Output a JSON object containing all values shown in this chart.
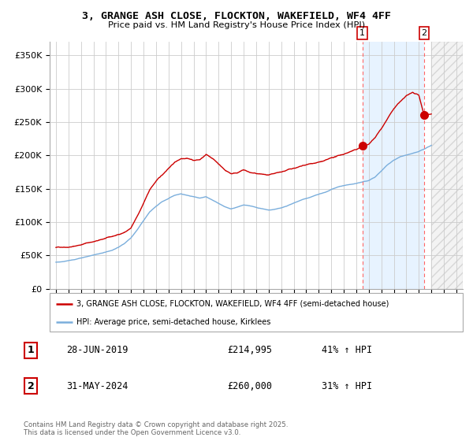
{
  "title_line1": "3, GRANGE ASH CLOSE, FLOCKTON, WAKEFIELD, WF4 4FF",
  "title_line2": "Price paid vs. HM Land Registry's House Price Index (HPI)",
  "xlim": [
    1994.5,
    2027.5
  ],
  "ylim": [
    0,
    370000
  ],
  "yticks": [
    0,
    50000,
    100000,
    150000,
    200000,
    250000,
    300000,
    350000
  ],
  "ytick_labels": [
    "£0",
    "£50K",
    "£100K",
    "£150K",
    "£200K",
    "£250K",
    "£300K",
    "£350K"
  ],
  "red_color": "#cc0000",
  "blue_color": "#7aaedc",
  "marker1_x": 2019.49,
  "marker1_y": 214995,
  "marker2_x": 2024.42,
  "marker2_y": 260000,
  "vline_x1": 2019.49,
  "vline_x2": 2024.42,
  "shaded_start": 2019.49,
  "shaded_end": 2024.42,
  "hatch_start": 2025.0,
  "legend_red_label": "3, GRANGE ASH CLOSE, FLOCKTON, WAKEFIELD, WF4 4FF (semi-detached house)",
  "legend_blue_label": "HPI: Average price, semi-detached house, Kirklees",
  "table_row1": [
    "1",
    "28-JUN-2019",
    "£214,995",
    "41% ↑ HPI"
  ],
  "table_row2": [
    "2",
    "31-MAY-2024",
    "£260,000",
    "31% ↑ HPI"
  ],
  "footer": "Contains HM Land Registry data © Crown copyright and database right 2025.\nThis data is licensed under the Open Government Licence v3.0.",
  "bg_color": "#ffffff",
  "grid_color": "#cccccc",
  "shaded_color": "#ddeeff",
  "red_anchors": [
    [
      1995.0,
      62000
    ],
    [
      1995.5,
      63000
    ],
    [
      1996.0,
      64000
    ],
    [
      1996.5,
      65500
    ],
    [
      1997.0,
      68000
    ],
    [
      1997.5,
      71000
    ],
    [
      1998.0,
      73000
    ],
    [
      1998.5,
      75000
    ],
    [
      1999.0,
      78000
    ],
    [
      1999.5,
      80000
    ],
    [
      2000.0,
      83000
    ],
    [
      2000.5,
      87000
    ],
    [
      2001.0,
      93000
    ],
    [
      2001.5,
      110000
    ],
    [
      2002.0,
      130000
    ],
    [
      2002.5,
      150000
    ],
    [
      2003.0,
      163000
    ],
    [
      2003.5,
      172000
    ],
    [
      2004.0,
      183000
    ],
    [
      2004.5,
      192000
    ],
    [
      2005.0,
      198000
    ],
    [
      2005.5,
      200000
    ],
    [
      2006.0,
      197000
    ],
    [
      2006.5,
      198000
    ],
    [
      2007.0,
      205000
    ],
    [
      2007.5,
      200000
    ],
    [
      2008.0,
      192000
    ],
    [
      2008.5,
      183000
    ],
    [
      2009.0,
      178000
    ],
    [
      2009.5,
      180000
    ],
    [
      2010.0,
      184000
    ],
    [
      2010.5,
      180000
    ],
    [
      2011.0,
      178000
    ],
    [
      2011.5,
      177000
    ],
    [
      2012.0,
      175000
    ],
    [
      2012.5,
      176000
    ],
    [
      2013.0,
      178000
    ],
    [
      2013.5,
      181000
    ],
    [
      2014.0,
      184000
    ],
    [
      2014.5,
      186000
    ],
    [
      2015.0,
      188000
    ],
    [
      2015.5,
      190000
    ],
    [
      2016.0,
      192000
    ],
    [
      2016.5,
      194000
    ],
    [
      2017.0,
      197000
    ],
    [
      2017.5,
      200000
    ],
    [
      2018.0,
      203000
    ],
    [
      2018.5,
      207000
    ],
    [
      2019.0,
      210000
    ],
    [
      2019.49,
      214995
    ],
    [
      2020.0,
      218000
    ],
    [
      2020.5,
      228000
    ],
    [
      2021.0,
      242000
    ],
    [
      2021.5,
      258000
    ],
    [
      2022.0,
      272000
    ],
    [
      2022.5,
      282000
    ],
    [
      2023.0,
      290000
    ],
    [
      2023.5,
      295000
    ],
    [
      2024.0,
      290000
    ],
    [
      2024.42,
      260000
    ],
    [
      2025.0,
      262000
    ]
  ],
  "blue_anchors": [
    [
      1995.0,
      40000
    ],
    [
      1995.5,
      41000
    ],
    [
      1996.0,
      43000
    ],
    [
      1996.5,
      44000
    ],
    [
      1997.0,
      46000
    ],
    [
      1997.5,
      48000
    ],
    [
      1998.0,
      50000
    ],
    [
      1998.5,
      52000
    ],
    [
      1999.0,
      54000
    ],
    [
      1999.5,
      57000
    ],
    [
      2000.0,
      62000
    ],
    [
      2000.5,
      68000
    ],
    [
      2001.0,
      76000
    ],
    [
      2001.5,
      88000
    ],
    [
      2002.0,
      102000
    ],
    [
      2002.5,
      115000
    ],
    [
      2003.0,
      123000
    ],
    [
      2003.5,
      130000
    ],
    [
      2004.0,
      135000
    ],
    [
      2004.5,
      140000
    ],
    [
      2005.0,
      142000
    ],
    [
      2005.5,
      140000
    ],
    [
      2006.0,
      138000
    ],
    [
      2006.5,
      136000
    ],
    [
      2007.0,
      138000
    ],
    [
      2007.5,
      133000
    ],
    [
      2008.0,
      128000
    ],
    [
      2008.5,
      123000
    ],
    [
      2009.0,
      120000
    ],
    [
      2009.5,
      122000
    ],
    [
      2010.0,
      125000
    ],
    [
      2010.5,
      124000
    ],
    [
      2011.0,
      122000
    ],
    [
      2011.5,
      120000
    ],
    [
      2012.0,
      118000
    ],
    [
      2012.5,
      119000
    ],
    [
      2013.0,
      121000
    ],
    [
      2013.5,
      124000
    ],
    [
      2014.0,
      128000
    ],
    [
      2014.5,
      132000
    ],
    [
      2015.0,
      135000
    ],
    [
      2015.5,
      138000
    ],
    [
      2016.0,
      141000
    ],
    [
      2016.5,
      144000
    ],
    [
      2017.0,
      148000
    ],
    [
      2017.5,
      151000
    ],
    [
      2018.0,
      153000
    ],
    [
      2018.5,
      155000
    ],
    [
      2019.0,
      157000
    ],
    [
      2019.5,
      159000
    ],
    [
      2020.0,
      161000
    ],
    [
      2020.5,
      167000
    ],
    [
      2021.0,
      176000
    ],
    [
      2021.5,
      185000
    ],
    [
      2022.0,
      192000
    ],
    [
      2022.5,
      197000
    ],
    [
      2023.0,
      200000
    ],
    [
      2023.5,
      203000
    ],
    [
      2024.0,
      206000
    ],
    [
      2024.5,
      210000
    ],
    [
      2025.0,
      215000
    ]
  ]
}
